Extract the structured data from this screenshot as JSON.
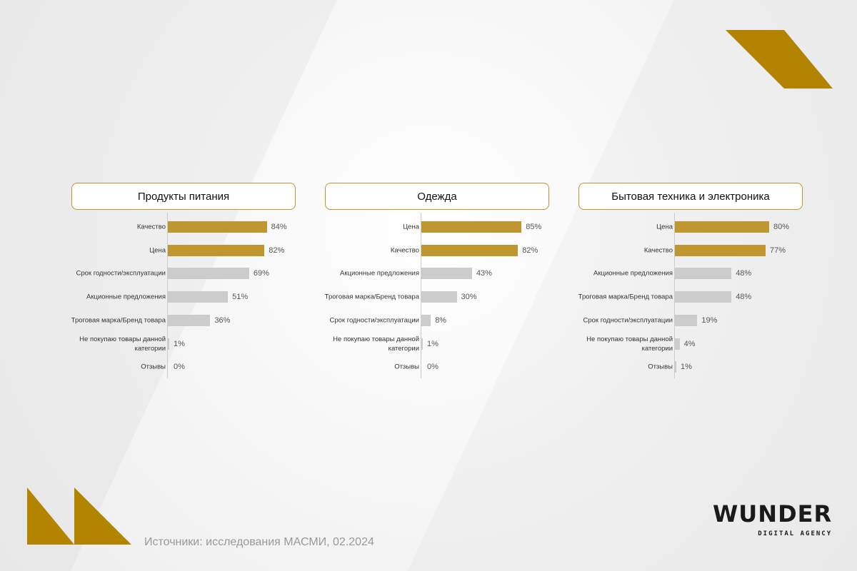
{
  "colors": {
    "accent": "#bf962f",
    "neutral": "#cccccc",
    "border": "#c0952b"
  },
  "chart_data": [
    {
      "type": "bar",
      "orientation": "horizontal",
      "title": "Продукты питания",
      "categories": [
        "Качество",
        "Цена",
        "Срок годности/эксплуатации",
        "Акционные предложения",
        "Троговая марка/Бренд товара",
        "Не покупаю товары данной категории",
        "Отзывы"
      ],
      "values": [
        84,
        82,
        69,
        51,
        36,
        1,
        0
      ],
      "highlighted": [
        true,
        true,
        false,
        false,
        false,
        false,
        false
      ],
      "unit": "%",
      "xlim": [
        0,
        100
      ]
    },
    {
      "type": "bar",
      "orientation": "horizontal",
      "title": "Одежда",
      "categories": [
        "Цена",
        "Качество",
        "Акционные предложения",
        "Троговая марка/Бренд товара",
        "Срок годности/эксплуатации",
        "Не покупаю товары данной категории",
        "Отзывы"
      ],
      "values": [
        85,
        82,
        43,
        30,
        8,
        1,
        0
      ],
      "highlighted": [
        true,
        true,
        false,
        false,
        false,
        false,
        false
      ],
      "unit": "%",
      "xlim": [
        0,
        100
      ]
    },
    {
      "type": "bar",
      "orientation": "horizontal",
      "title": "Бытовая техника и электроника",
      "categories": [
        "Цена",
        "Качество",
        "Акционные предложения",
        "Троговая марка/Бренд товара",
        "Срок годности/эксплуатации",
        "Не покупаю товары данной категории",
        "Отзывы"
      ],
      "values": [
        80,
        77,
        48,
        48,
        19,
        4,
        1
      ],
      "highlighted": [
        true,
        true,
        false,
        false,
        false,
        false,
        false
      ],
      "unit": "%",
      "xlim": [
        0,
        100
      ]
    }
  ],
  "footer": {
    "source": "Источники: исследования МАСМИ, 02.2024"
  },
  "logo": {
    "main": "WUNDER",
    "sub": "DIGITAL AGENCY"
  }
}
